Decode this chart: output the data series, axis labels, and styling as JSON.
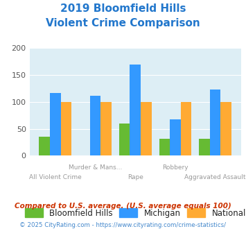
{
  "title_line1": "2019 Bloomfield Hills",
  "title_line2": "Violent Crime Comparison",
  "title_color": "#2277cc",
  "categories": [
    "All Violent Crime",
    "Murder & Mans...",
    "Rape",
    "Robbery",
    "Aggravated Assault"
  ],
  "bloomfield": [
    35,
    0,
    60,
    32,
    32
  ],
  "michigan": [
    116,
    112,
    170,
    67,
    123
  ],
  "national": [
    100,
    100,
    100,
    100,
    100
  ],
  "bar_colors": {
    "bloomfield": "#66bb33",
    "michigan": "#3399ff",
    "national": "#ffaa33"
  },
  "ylim": [
    0,
    200
  ],
  "yticks": [
    0,
    50,
    100,
    150,
    200
  ],
  "chart_bg": "#ddeef5",
  "fig_bg": "#ffffff",
  "footer_text": "Compared to U.S. average. (U.S. average equals 100)",
  "footer_color": "#cc3300",
  "credit_text": "© 2025 CityRating.com - https://www.cityrating.com/crime-statistics/",
  "credit_color": "#4488cc",
  "legend_labels": [
    "Bloomfield Hills",
    "Michigan",
    "National"
  ],
  "xlabel_top": [
    "",
    "Murder & Mans...",
    "",
    "Robbery",
    ""
  ],
  "xlabel_bottom": [
    "All Violent Crime",
    "",
    "Rape",
    "",
    "Aggravated Assault"
  ]
}
